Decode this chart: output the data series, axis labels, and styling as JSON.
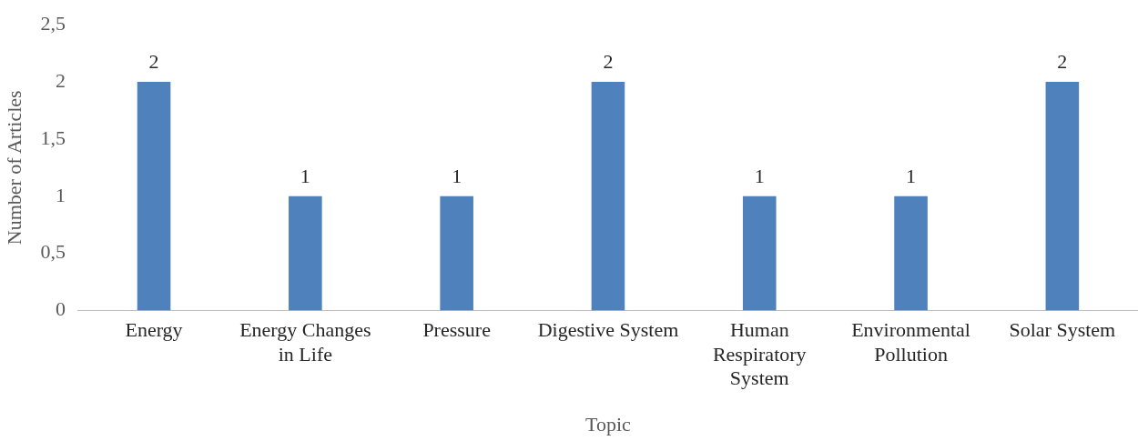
{
  "chart_data": {
    "type": "bar",
    "xlabel": "Topic",
    "ylabel": "Number of Articles",
    "categories": [
      "Energy",
      "Energy Changes in Life",
      "Pressure",
      "Digestive System",
      "Human Respiratory System",
      "Environmental Pollution",
      "Solar System"
    ],
    "values": [
      2,
      1,
      1,
      2,
      1,
      1,
      2
    ],
    "color": "#4f81bd",
    "ylim": [
      0,
      2.5
    ],
    "yticks": [
      0,
      {
        "value": 0.5,
        "label": "0,5"
      },
      1,
      {
        "value": 1.5,
        "label": "1,5"
      },
      2,
      {
        "value": 2.5,
        "label": "2,5"
      }
    ],
    "grid": false,
    "legend": false,
    "data_labels": true
  }
}
